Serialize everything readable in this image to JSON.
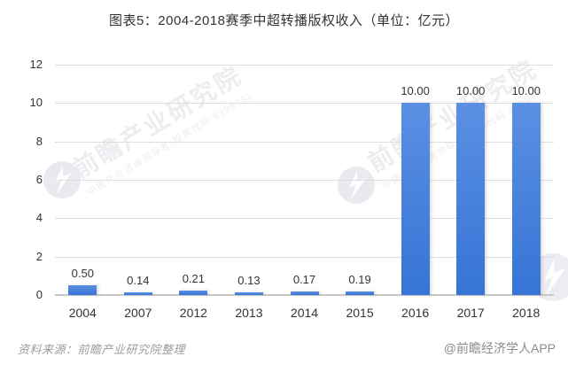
{
  "header": {
    "title": "图表5：2004-2018赛季中超转播版权收入（单位：亿元）"
  },
  "chart_data": {
    "type": "bar",
    "title": "图表5：2004-2018赛季中超转播版权收入（单位：亿元）",
    "categories": [
      "2004",
      "2007",
      "2012",
      "2013",
      "2014",
      "2015",
      "2016",
      "2017",
      "2018"
    ],
    "values": [
      0.5,
      0.14,
      0.21,
      0.13,
      0.17,
      0.19,
      10.0,
      10.0,
      10.0
    ],
    "value_labels": [
      "0.50",
      "0.14",
      "0.21",
      "0.13",
      "0.17",
      "0.19",
      "10.00",
      "10.00",
      "10.00"
    ],
    "xlabel": "",
    "ylabel": "",
    "ylim": [
      0,
      12
    ],
    "yticks": [
      0,
      2,
      4,
      6,
      8,
      10,
      12
    ],
    "grid": true,
    "legend": "none"
  },
  "colors": {
    "bar_top": "#5b90e3",
    "bar_bottom": "#3674d6",
    "grid": "#dedede",
    "axis": "#c8c8c8",
    "text": "#333333",
    "muted": "#9c9c9c",
    "watermark": "#ededf1"
  },
  "watermark": {
    "logo_icon": "qianzhan-bird-logo",
    "text_large": "前瞻产业研究院",
    "text_small": "中国产业咨询领导者(股票代码:839599)"
  },
  "footer": {
    "source": "资料来源：前瞻产业研究院整理",
    "brand": "@前瞻经济学人APP"
  }
}
